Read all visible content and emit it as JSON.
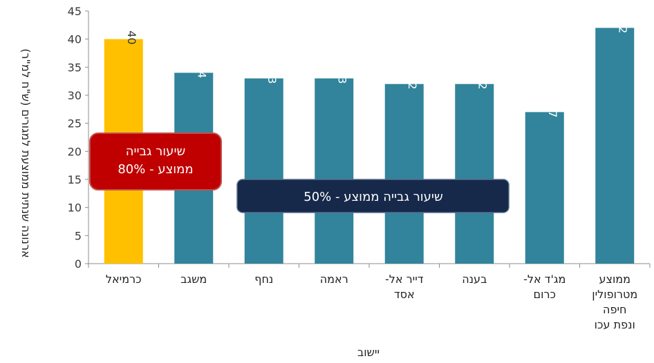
{
  "chart_data": {
    "type": "bar",
    "categories": [
      [
        "כרמיאל"
      ],
      [
        "משגב"
      ],
      [
        "נחף"
      ],
      [
        "ראמה"
      ],
      [
        "דייר אל-",
        "אסד"
      ],
      [
        "בענה"
      ],
      [
        "מג'ד אל-",
        "כרום"
      ],
      [
        "ממוצע",
        "מטרופולין",
        "חיפה",
        "ונפת עכו"
      ]
    ],
    "values": [
      40,
      34,
      33,
      33,
      32,
      32,
      27,
      42
    ],
    "data_labels": [
      "40",
      "34",
      "33",
      "33",
      "32",
      "32",
      "27",
      "42"
    ],
    "xlabel": "יישוב",
    "ylabel": "ארנונה שנתית ממוצעת למגורים (ש\"ח למ\"ר)",
    "ylim": [
      0,
      45
    ],
    "yticks": [
      0,
      5,
      10,
      15,
      20,
      25,
      30,
      35,
      40,
      45
    ],
    "grid": false,
    "colors": {
      "default_bar": "#31849b",
      "highlight_bar": "#ffc000",
      "highlight_index": 0,
      "highlight_label": "#3a3a3a",
      "default_label": "#ffffff"
    },
    "annotations": [
      {
        "lines": [
          "שיעור גבייה",
          "ממוצע - 80%"
        ],
        "color": "#c00000",
        "border": "#c0504d"
      },
      {
        "lines": [
          "שיעור גבייה ממוצע - 50%"
        ],
        "color": "#17294a",
        "border": "#5a6e8f"
      }
    ]
  }
}
